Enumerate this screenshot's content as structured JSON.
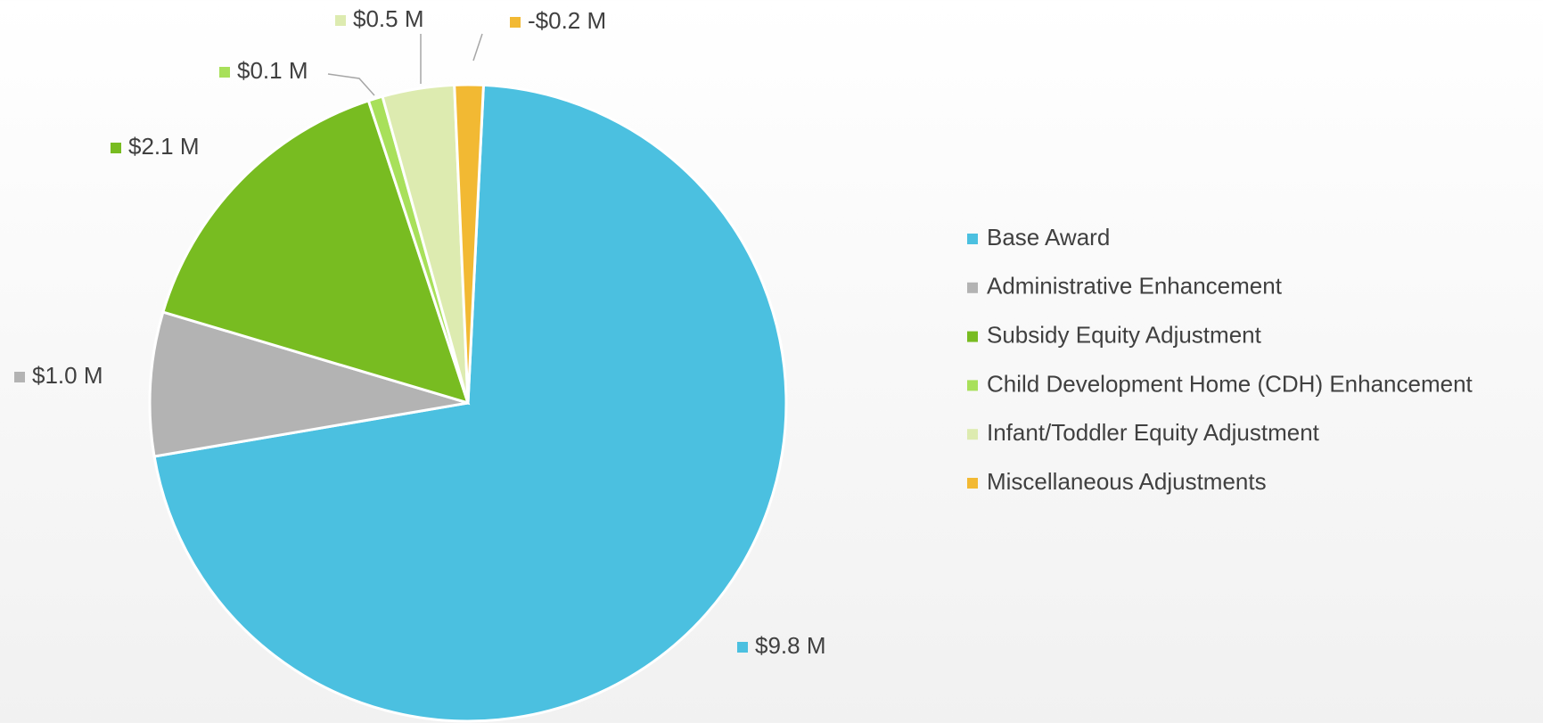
{
  "chart_data": {
    "type": "pie",
    "categories": [
      "Base Award",
      "Administrative Enhancement",
      "Subsidy Equity Adjustment",
      "Child Development Home (CDH) Enhancement",
      "Infant/Toddler Equity Adjustment",
      "Miscellaneous Adjustments"
    ],
    "values": [
      9.8,
      1.0,
      2.1,
      0.1,
      0.5,
      -0.2
    ],
    "value_labels": [
      "$9.8 M",
      "$1.0 M",
      "$2.1 M",
      "$0.1 M",
      "$0.5 M",
      "-$0.2 M"
    ],
    "colors": [
      "#4bc0e0",
      "#b3b3b3",
      "#78bc21",
      "#a8e05a",
      "#ddebb0",
      "#f2b933"
    ],
    "legend": "right"
  }
}
